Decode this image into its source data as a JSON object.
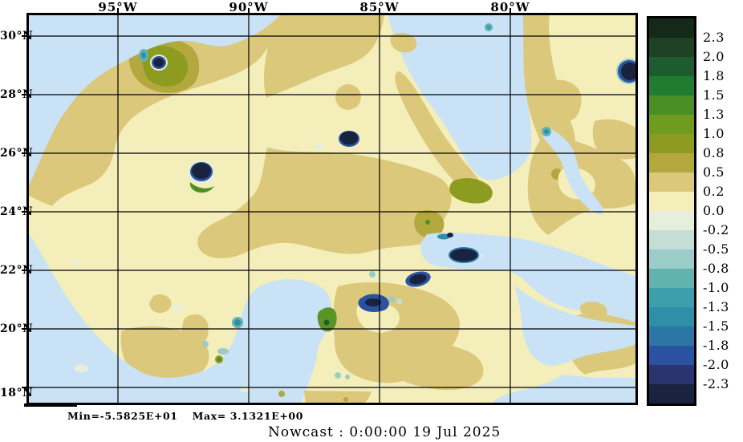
{
  "figure": {
    "title": "Nowcast :  0:00:00  19 Jul 2025",
    "stats": {
      "min_label": "Min=-5.5825E+01",
      "max_label": "Max= 3.1321E+00"
    },
    "top_axis": {
      "labels": [
        "95°W",
        "90°W",
        "85°W",
        "80°W"
      ]
    },
    "left_axis": {
      "labels": [
        "30°N",
        "28°N",
        "26°N",
        "24°N",
        "22°N",
        "20°N",
        "18°N"
      ]
    },
    "colorbar": {
      "tick_labels": [
        "2.3",
        "2.0",
        "1.8",
        "1.5",
        "1.3",
        "1.0",
        "0.8",
        "0.5",
        "0.2",
        "0.0",
        "-0.2",
        "-0.5",
        "-0.8",
        "-1.0",
        "-1.3",
        "-1.5",
        "-1.8",
        "-2.0",
        "-2.3"
      ],
      "segment_colors": [
        "#14291a",
        "#1e4023",
        "#1d5c2e",
        "#1f7c30",
        "#4a8e26",
        "#6f9b1e",
        "#8d9c21",
        "#b3a83d",
        "#dbc87b",
        "#f4efba",
        "#e7eedb",
        "#c4ded6",
        "#9bccc8",
        "#62b2b0",
        "#3ba0ab",
        "#2f8fa8",
        "#2c76a6",
        "#2b52a0",
        "#2c3470",
        "#19233f"
      ]
    },
    "map_colors": {
      "masked_shelf_blue": "#c9e2f6",
      "field_base_yellow": "#f4efba",
      "field_tan": "#dbc87b",
      "field_olive": "#b3a83d",
      "eddy_core_navy": "#19233f"
    }
  },
  "chart_data": {
    "type": "heatmap",
    "title": "Nowcast :  0:00:00  19 Jul 2025",
    "region": "Gulf of Mexico / NW Caribbean",
    "x_ticks": [
      "95°W",
      "90°W",
      "85°W",
      "80°W"
    ],
    "y_ticks": [
      "30°N",
      "28°N",
      "26°N",
      "24°N",
      "22°N",
      "20°N",
      "18°N"
    ],
    "x_range_approx": [
      "98.5°W",
      "75.5°W"
    ],
    "y_range_approx": [
      "17.5°N",
      "30.7°N"
    ],
    "grid": true,
    "legend_position": "right-colorbar",
    "colorbar_levels": [
      2.3,
      2.0,
      1.8,
      1.5,
      1.3,
      1.0,
      0.8,
      0.5,
      0.2,
      0.0,
      -0.2,
      -0.5,
      -0.8,
      -1.0,
      -1.3,
      -1.5,
      -1.8,
      -2.0,
      -2.3
    ],
    "colorbar_colors": [
      "#14291a",
      "#1e4023",
      "#1d5c2e",
      "#1f7c30",
      "#4a8e26",
      "#6f9b1e",
      "#8d9c21",
      "#b3a83d",
      "#dbc87b",
      "#f4efba",
      "#e7eedb",
      "#c4ded6",
      "#9bccc8",
      "#62b2b0",
      "#3ba0ab",
      "#2f8fa8",
      "#2c76a6",
      "#2b52a0",
      "#2c3470",
      "#19233f"
    ],
    "field_min": "-5.5825E+01",
    "field_max": "3.1321E+00",
    "description": "Filled-contour nowcast field: open water mostly 0.0 to 0.5 (pale yellow / tan) with olive patches 0.5-1.0; light-blue masked shelf/land areas (TX-LA shelf, Campeche Bay, West Florida shelf, Cuba straits, SE corner); several small dark-navy eddies below -2.3 near (91W,25.3N), (85.4W,26.2N), (92.6W,28.4N), (80.4W,28.5N), (82.2W,21.9N), (84.2W,21.4N), (85.9W,20.9N)"
  }
}
